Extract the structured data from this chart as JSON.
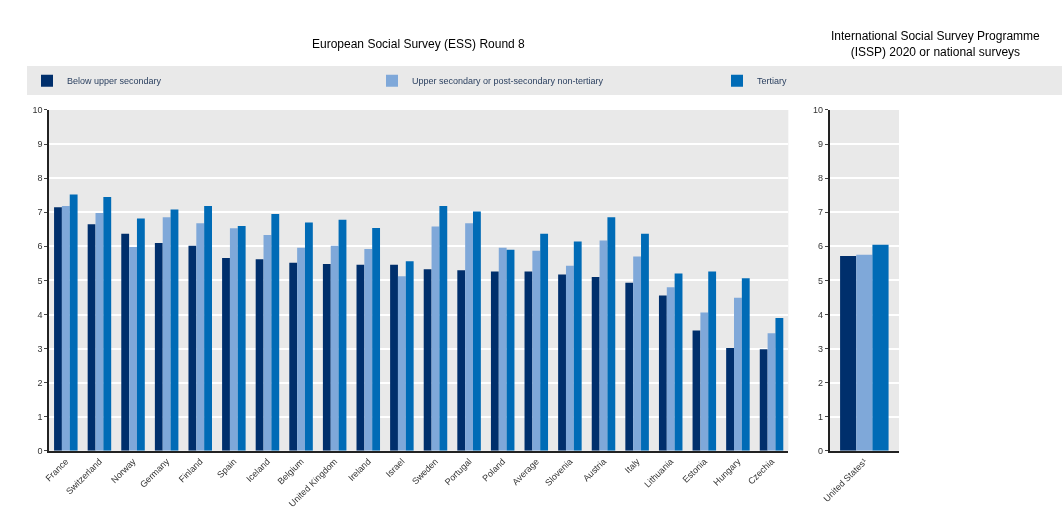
{
  "chart_data": [
    {
      "type": "bar",
      "title": "European Social Survey (ESS) Round 8",
      "categories": [
        "France",
        "Switzerland",
        "Norway",
        "Germany",
        "Finland",
        "Spain",
        "Iceland",
        "Belgium",
        "United Kingdom",
        "Ireland",
        "Israel",
        "Sweden",
        "Portugal",
        "Poland",
        "Average",
        "Slovenia",
        "Austria",
        "Italy",
        "Lithuania",
        "Estonia",
        "Hungary",
        "Czechia"
      ],
      "series": [
        {
          "name": "Below upper secondary",
          "color": "#002f6c",
          "values": [
            7.15,
            6.65,
            6.37,
            6.1,
            6.02,
            5.66,
            5.62,
            5.52,
            5.48,
            5.46,
            5.46,
            5.33,
            5.3,
            5.26,
            5.26,
            5.17,
            5.1,
            4.93,
            4.56,
            3.53,
            3.02,
            2.98
          ]
        },
        {
          "name": "Upper secondary or post-secondary non-tertiary",
          "color": "#7fa8d9",
          "values": [
            7.18,
            6.98,
            5.98,
            6.85,
            6.68,
            6.53,
            6.33,
            5.96,
            6.02,
            5.92,
            5.12,
            6.58,
            6.68,
            5.96,
            5.87,
            5.43,
            6.17,
            5.7,
            4.8,
            4.06,
            4.49,
            3.45
          ]
        },
        {
          "name": "Tertiary",
          "color": "#006bb6",
          "values": [
            7.52,
            7.45,
            6.82,
            7.08,
            7.18,
            6.6,
            6.95,
            6.7,
            6.78,
            6.54,
            5.56,
            7.18,
            7.02,
            5.9,
            6.37,
            6.14,
            6.85,
            6.37,
            5.2,
            5.26,
            5.06,
            3.9
          ]
        }
      ],
      "ylim": [
        0,
        10
      ],
      "yticks": [
        0,
        1,
        2,
        3,
        4,
        5,
        6,
        7,
        8,
        9,
        10
      ],
      "grid": true,
      "legend": "top"
    },
    {
      "type": "bar",
      "title": "International Social Survey Programme\n(ISSP) 2020 or national surveys",
      "categories": [
        "United States¹"
      ],
      "series": [
        {
          "color": "#002f6c",
          "values": [
            5.72
          ]
        },
        {
          "color": "#7fa8d9",
          "values": [
            5.75
          ]
        },
        {
          "color": "#006bb6",
          "values": [
            6.05
          ]
        }
      ],
      "ylim": [
        0,
        10
      ],
      "yticks": [
        0,
        1,
        2,
        3,
        4,
        5,
        6,
        7,
        8,
        9,
        10
      ],
      "grid": true
    }
  ]
}
